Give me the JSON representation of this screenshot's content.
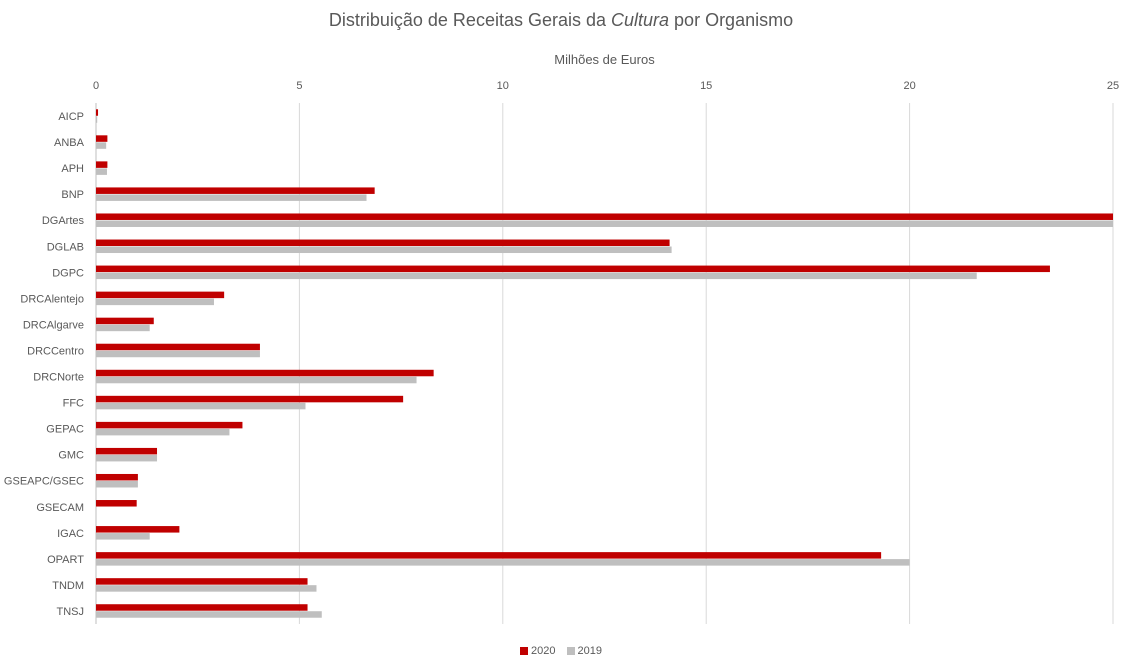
{
  "chart_data": {
    "type": "bar",
    "orientation": "horizontal",
    "title_prefix": "Distribuição de Receitas Gerais da ",
    "title_italic": "Cultura",
    "title_suffix": " por Organismo",
    "xlabel": "Milhões  de Euros",
    "xlim": [
      0,
      25
    ],
    "xticks": [
      "0",
      "5",
      "10",
      "15",
      "20",
      "25"
    ],
    "categories": [
      "AICP",
      "ANBA",
      "APH",
      "BNP",
      "DGArtes",
      "DGLAB",
      "DGPC",
      "DRCAlentejo",
      "DRCAlgarve",
      "DRCCentro",
      "DRCNorte",
      "FFC",
      "GEPAC",
      "GMC",
      "GSEAPC/GSEC",
      "GSECAM",
      "IGAC",
      "OPART",
      "TNDM",
      "TNSJ"
    ],
    "series": [
      {
        "name": "2020",
        "color": "#c00000",
        "values": [
          0.05,
          0.28,
          0.28,
          6.85,
          25.0,
          14.1,
          23.45,
          3.15,
          1.42,
          4.03,
          8.3,
          7.55,
          3.6,
          1.5,
          1.03,
          1.0,
          2.05,
          19.3,
          5.2,
          5.2
        ]
      },
      {
        "name": "2019",
        "color": "#bfbfbf",
        "values": [
          0.03,
          0.25,
          0.27,
          6.65,
          25.0,
          14.15,
          21.65,
          2.9,
          1.32,
          4.03,
          7.88,
          5.15,
          3.28,
          1.5,
          1.03,
          0.0,
          1.32,
          20.0,
          5.42,
          5.55
        ]
      }
    ],
    "grid": true,
    "legend_position": "bottom"
  }
}
